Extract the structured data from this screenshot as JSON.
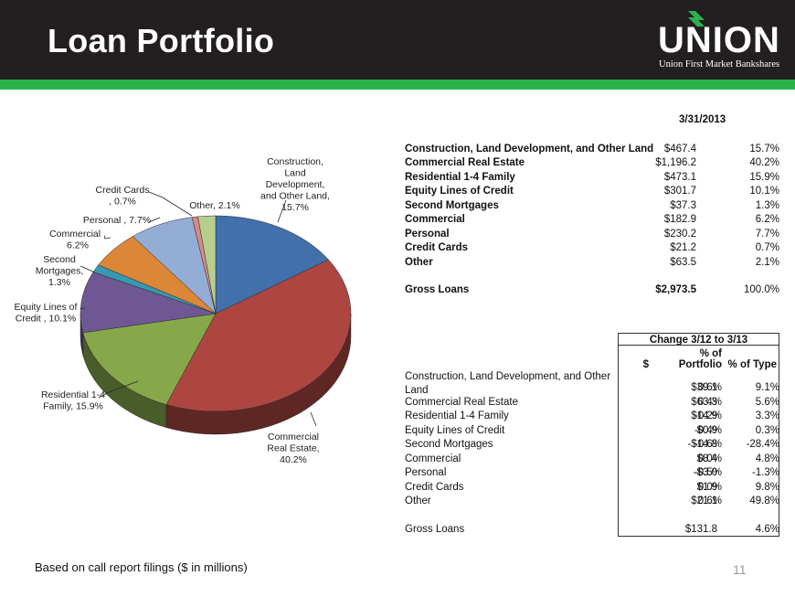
{
  "header": {
    "title": "Loan Portfolio",
    "logo_word": "UNION",
    "logo_sub": "Union First Market Bankshares"
  },
  "chart_data": {
    "type": "pie",
    "title": "",
    "slices": [
      {
        "name": "Construction, Land Development, and Other Land",
        "percent": 15.7,
        "color": "#4170aa",
        "label_lines": [
          "Construction,",
          "Land",
          "Development,",
          "and Other Land,",
          "15.7%"
        ]
      },
      {
        "name": "Commercial Real Estate",
        "percent": 40.2,
        "color": "#ad4641",
        "label_lines": [
          "Commercial",
          "Real Estate,",
          "40.2%"
        ]
      },
      {
        "name": "Residential 1-4 Family",
        "percent": 15.9,
        "color": "#87a84a",
        "label_lines": [
          "Residential 1-4",
          "Family, 15.9%"
        ]
      },
      {
        "name": "Equity Lines of Credit",
        "percent": 10.1,
        "color": "#6f5794",
        "label_lines": [
          "Equity Lines of",
          "Credit , 10.1%"
        ]
      },
      {
        "name": "Second Mortgages",
        "percent": 1.3,
        "color": "#3799b1",
        "label_lines": [
          "Second",
          "Mortgages,",
          "1.3%"
        ]
      },
      {
        "name": "Commercial",
        "percent": 6.2,
        "color": "#dc8638",
        "label_lines": [
          "Commercial  ,",
          "6.2%"
        ]
      },
      {
        "name": "Personal",
        "percent": 7.7,
        "color": "#94add5",
        "label_lines": [
          "Personal , 7.7%"
        ]
      },
      {
        "name": "Credit Cards",
        "percent": 0.7,
        "color": "#d78a8a",
        "label_lines": [
          "Credit Cards",
          ", 0.7%"
        ]
      },
      {
        "name": "Other",
        "percent": 2.1,
        "color": "#b7cf8d",
        "label_lines": [
          "Other, 2.1%"
        ]
      }
    ]
  },
  "portfolio_table": {
    "date_header": "3/31/2013",
    "rows": [
      {
        "name": "Construction, Land Development, and Other Land",
        "value": "$467.4",
        "pct": "15.7%"
      },
      {
        "name": "Commercial Real Estate",
        "value": "$1,196.2",
        "pct": "40.2%"
      },
      {
        "name": "Residential 1-4 Family",
        "value": "$473.1",
        "pct": "15.9%"
      },
      {
        "name": "Equity Lines of Credit",
        "value": "$301.7",
        "pct": "10.1%"
      },
      {
        "name": "Second Mortgages",
        "value": "$37.3",
        "pct": "1.3%"
      },
      {
        "name": "Commercial",
        "value": "$182.9",
        "pct": "6.2%"
      },
      {
        "name": "Personal",
        "value": "$230.2",
        "pct": "7.7%"
      },
      {
        "name": "Credit Cards",
        "value": "$21.2",
        "pct": "0.7%"
      },
      {
        "name": "Other",
        "value": "$63.5",
        "pct": "2.1%"
      }
    ],
    "total": {
      "name": "Gross Loans",
      "value": "$2,973.5",
      "pct": "100.0%"
    }
  },
  "change_table": {
    "title": "Change 3/12 to 3/13",
    "col_dollar": "$",
    "col_portfolio_1": "% of",
    "col_portfolio_2": "Portfolio",
    "col_type": "% of Type",
    "first_row_name_1": "Construction, Land Development, and Other",
    "first_row_name_2": "Land",
    "rows": [
      {
        "name": "",
        "dollar": "$39.1",
        "portfolio": "0.6%",
        "type": "9.1%"
      },
      {
        "name": "Commercial Real Estate",
        "dollar": "$63.3",
        "portfolio": "0.4%",
        "type": "5.6%"
      },
      {
        "name": "Residential 1-4 Family",
        "dollar": "$14.9",
        "portfolio": "-0.2%",
        "type": "3.3%"
      },
      {
        "name": "Equity Lines of Credit",
        "dollar": "$0.9",
        "portfolio": "-0.4%",
        "type": "0.3%"
      },
      {
        "name": "Second Mortgages",
        "dollar": "-$14.8",
        "portfolio": "-0.6%",
        "type": "-28.4%"
      },
      {
        "name": "Commercial",
        "dollar": "$8.4",
        "portfolio": "0.0%",
        "type": "4.8%"
      },
      {
        "name": "Personal",
        "dollar": "-$3.0",
        "portfolio": "-0.5%",
        "type": "-1.3%"
      },
      {
        "name": "Credit Cards",
        "dollar": "$1.9",
        "portfolio": "0.0%",
        "type": "9.8%"
      },
      {
        "name": "Other",
        "dollar": "$21.1",
        "portfolio": "0.6%",
        "type": "49.8%"
      }
    ],
    "total": {
      "name": "Gross Loans",
      "dollar": "$131.8",
      "portfolio": "",
      "type": "4.6%"
    }
  },
  "footer": {
    "note": "Based on call report filings ($ in millions)",
    "page": "11"
  }
}
